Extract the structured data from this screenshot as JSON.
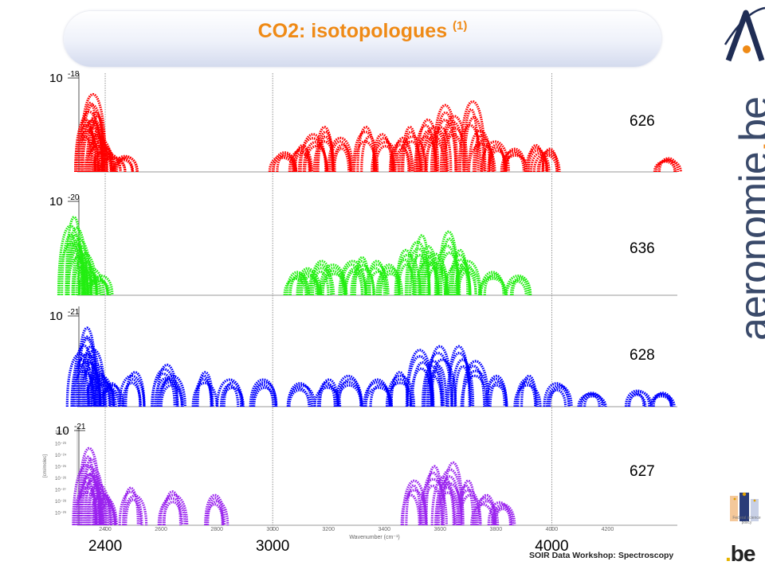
{
  "title": {
    "text": "CO2: isotopologues",
    "superscript": "(1)"
  },
  "footer": "SOIR Data Workshop: Spectroscopy",
  "logos": {
    "aeronomie": {
      "text_main": "aeronomie",
      "text_dot": ".",
      "text_tld": "be"
    },
    "federal": {
      "caption": "Federal science policy"
    },
    "be": {
      "dot": ".",
      "text": "be"
    }
  },
  "chart_data": {
    "type": "scatter",
    "x_ticks_big": [
      "2400",
      "3000",
      "4000"
    ],
    "x_ticks_small": [
      "2400",
      "2600",
      "2800",
      "3000",
      "3200",
      "3400",
      "3600",
      "3800",
      "4000",
      "4200"
    ],
    "xlabel_small": "Wavenumber (cm⁻¹)",
    "xlim": [
      2300,
      4450
    ],
    "y_ticks_small": [
      "10⁻²²",
      "10⁻²³",
      "10⁻²⁴",
      "10⁻²⁵",
      "10⁻²⁶",
      "10⁻²⁷",
      "10⁻²⁸",
      "10⁻²⁹"
    ],
    "series": [
      {
        "name": "626",
        "color": "#ff0000",
        "ymax_label": "10",
        "ymax_exp": "-18",
        "bands": [
          [
            2349,
            1.0
          ],
          [
            2360,
            0.85
          ],
          [
            2370,
            0.7
          ],
          [
            2334,
            0.65
          ],
          [
            2380,
            0.45
          ],
          [
            2395,
            0.3
          ],
          [
            2420,
            0.18
          ],
          [
            2470,
            0.15
          ],
          [
            3040,
            0.2
          ],
          [
            3100,
            0.3
          ],
          [
            3150,
            0.45
          ],
          [
            3181,
            0.55
          ],
          [
            3250,
            0.4
          ],
          [
            3339,
            0.55
          ],
          [
            3400,
            0.45
          ],
          [
            3460,
            0.4
          ],
          [
            3500,
            0.55
          ],
          [
            3550,
            0.65
          ],
          [
            3580,
            0.55
          ],
          [
            3612,
            0.85
          ],
          [
            3650,
            0.7
          ],
          [
            3714,
            0.9
          ],
          [
            3750,
            0.5
          ],
          [
            3800,
            0.35
          ],
          [
            3870,
            0.25
          ],
          [
            3950,
            0.3
          ],
          [
            3990,
            0.25
          ],
          [
            4410,
            0.12
          ]
        ]
      },
      {
        "name": "636",
        "color": "#22ee11",
        "ymax_label": "10",
        "ymax_exp": "-20",
        "bands": [
          [
            2283,
            1.0
          ],
          [
            2295,
            0.85
          ],
          [
            2310,
            0.7
          ],
          [
            2325,
            0.5
          ],
          [
            2345,
            0.3
          ],
          [
            2380,
            0.2
          ],
          [
            3090,
            0.25
          ],
          [
            3130,
            0.3
          ],
          [
            3170,
            0.4
          ],
          [
            3220,
            0.35
          ],
          [
            3290,
            0.4
          ],
          [
            3320,
            0.45
          ],
          [
            3370,
            0.4
          ],
          [
            3420,
            0.35
          ],
          [
            3480,
            0.55
          ],
          [
            3527,
            0.75
          ],
          [
            3555,
            0.6
          ],
          [
            3580,
            0.5
          ],
          [
            3632,
            0.8
          ],
          [
            3670,
            0.55
          ],
          [
            3700,
            0.4
          ],
          [
            3790,
            0.25
          ],
          [
            3880,
            0.2
          ]
        ]
      },
      {
        "name": "628",
        "color": "#0000ff",
        "ymax_label": "10",
        "ymax_exp": "-21",
        "bands": [
          [
            2331,
            1.0
          ],
          [
            2342,
            0.85
          ],
          [
            2355,
            0.7
          ],
          [
            2315,
            0.65
          ],
          [
            2370,
            0.5
          ],
          [
            2390,
            0.35
          ],
          [
            2420,
            0.25
          ],
          [
            2500,
            0.4
          ],
          [
            2614,
            0.5
          ],
          [
            2640,
            0.35
          ],
          [
            2760,
            0.4
          ],
          [
            2850,
            0.3
          ],
          [
            2970,
            0.3
          ],
          [
            3100,
            0.25
          ],
          [
            3200,
            0.3
          ],
          [
            3280,
            0.35
          ],
          [
            3380,
            0.3
          ],
          [
            3460,
            0.4
          ],
          [
            3533,
            0.7
          ],
          [
            3580,
            0.55
          ],
          [
            3600,
            0.75
          ],
          [
            3675,
            0.75
          ],
          [
            3720,
            0.55
          ],
          [
            3800,
            0.35
          ],
          [
            3910,
            0.35
          ],
          [
            4020,
            0.25
          ],
          [
            4150,
            0.12
          ],
          [
            4310,
            0.15
          ],
          [
            4390,
            0.12
          ]
        ]
      },
      {
        "name": "627",
        "color": "#9922ee",
        "ymax_label": "10",
        "ymax_exp": "-21",
        "bands": [
          [
            2340,
            1.0
          ],
          [
            2350,
            0.85
          ],
          [
            2365,
            0.7
          ],
          [
            2330,
            0.6
          ],
          [
            2380,
            0.5
          ],
          [
            2400,
            0.35
          ],
          [
            2500,
            0.45
          ],
          [
            2640,
            0.4
          ],
          [
            2800,
            0.35
          ],
          [
            3500,
            0.55
          ],
          [
            3580,
            0.75
          ],
          [
            3620,
            0.6
          ],
          [
            3640,
            0.8
          ],
          [
            3700,
            0.55
          ],
          [
            3760,
            0.35
          ],
          [
            3820,
            0.25
          ]
        ]
      }
    ]
  }
}
